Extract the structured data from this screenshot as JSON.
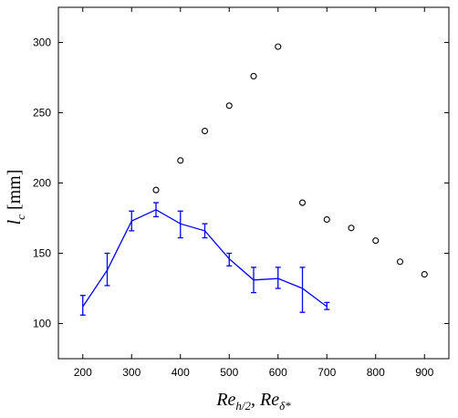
{
  "chart_data": {
    "type": "scatter",
    "xlabel": "Re_{h/2}, Re_{δ*}",
    "ylabel": "l_c [mm]",
    "xlim": [
      150,
      950
    ],
    "ylim": [
      75,
      325
    ],
    "xticks": [
      200,
      300,
      400,
      500,
      600,
      700,
      800,
      900
    ],
    "yticks": [
      100,
      150,
      200,
      250,
      300
    ],
    "grid": false,
    "series": [
      {
        "style": "line-with-errorbars",
        "color": "#0000ff",
        "x": [
          200,
          250,
          300,
          350,
          400,
          450,
          500,
          550,
          600,
          650,
          700
        ],
        "y": [
          112,
          138,
          173,
          181,
          171,
          166,
          146,
          131,
          132,
          125,
          112
        ],
        "err_low": [
          106,
          127,
          166,
          176,
          161,
          161,
          141,
          122,
          125,
          108,
          110
        ],
        "err_high": [
          120,
          150,
          180,
          186,
          180,
          171,
          150,
          140,
          140,
          140,
          115
        ]
      },
      {
        "style": "open-circles",
        "color": "#000000",
        "x": [
          350,
          400,
          450,
          500,
          550,
          600,
          650,
          700,
          750,
          800,
          850,
          900
        ],
        "y": [
          195,
          216,
          237,
          255,
          276,
          297,
          186,
          174,
          168,
          159,
          144,
          135
        ]
      }
    ]
  }
}
